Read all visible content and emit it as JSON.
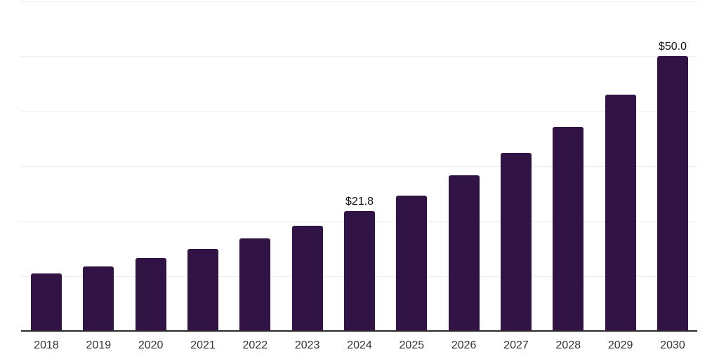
{
  "chart_data": {
    "type": "bar",
    "title": "",
    "xlabel": "",
    "ylabel": "",
    "categories": [
      "2018",
      "2019",
      "2020",
      "2021",
      "2022",
      "2023",
      "2024",
      "2025",
      "2026",
      "2027",
      "2028",
      "2029",
      "2030"
    ],
    "values": [
      10.5,
      11.8,
      13.3,
      15.0,
      16.8,
      19.2,
      21.8,
      24.7,
      28.3,
      32.4,
      37.1,
      43.0,
      50.0
    ],
    "value_labels": {
      "2024": "$21.8",
      "2030": "$50.0"
    },
    "ylim": [
      0,
      60
    ],
    "gridline_step": 10,
    "grid": true,
    "legend_position": "none",
    "y_tick_labels_visible": false,
    "colors": {
      "bar": "#321345",
      "gridline": "#eeeeee",
      "axis_line": "#2b2b2b",
      "tick_label": "#333333",
      "value_label": "#111111",
      "background": "#ffffff"
    }
  }
}
